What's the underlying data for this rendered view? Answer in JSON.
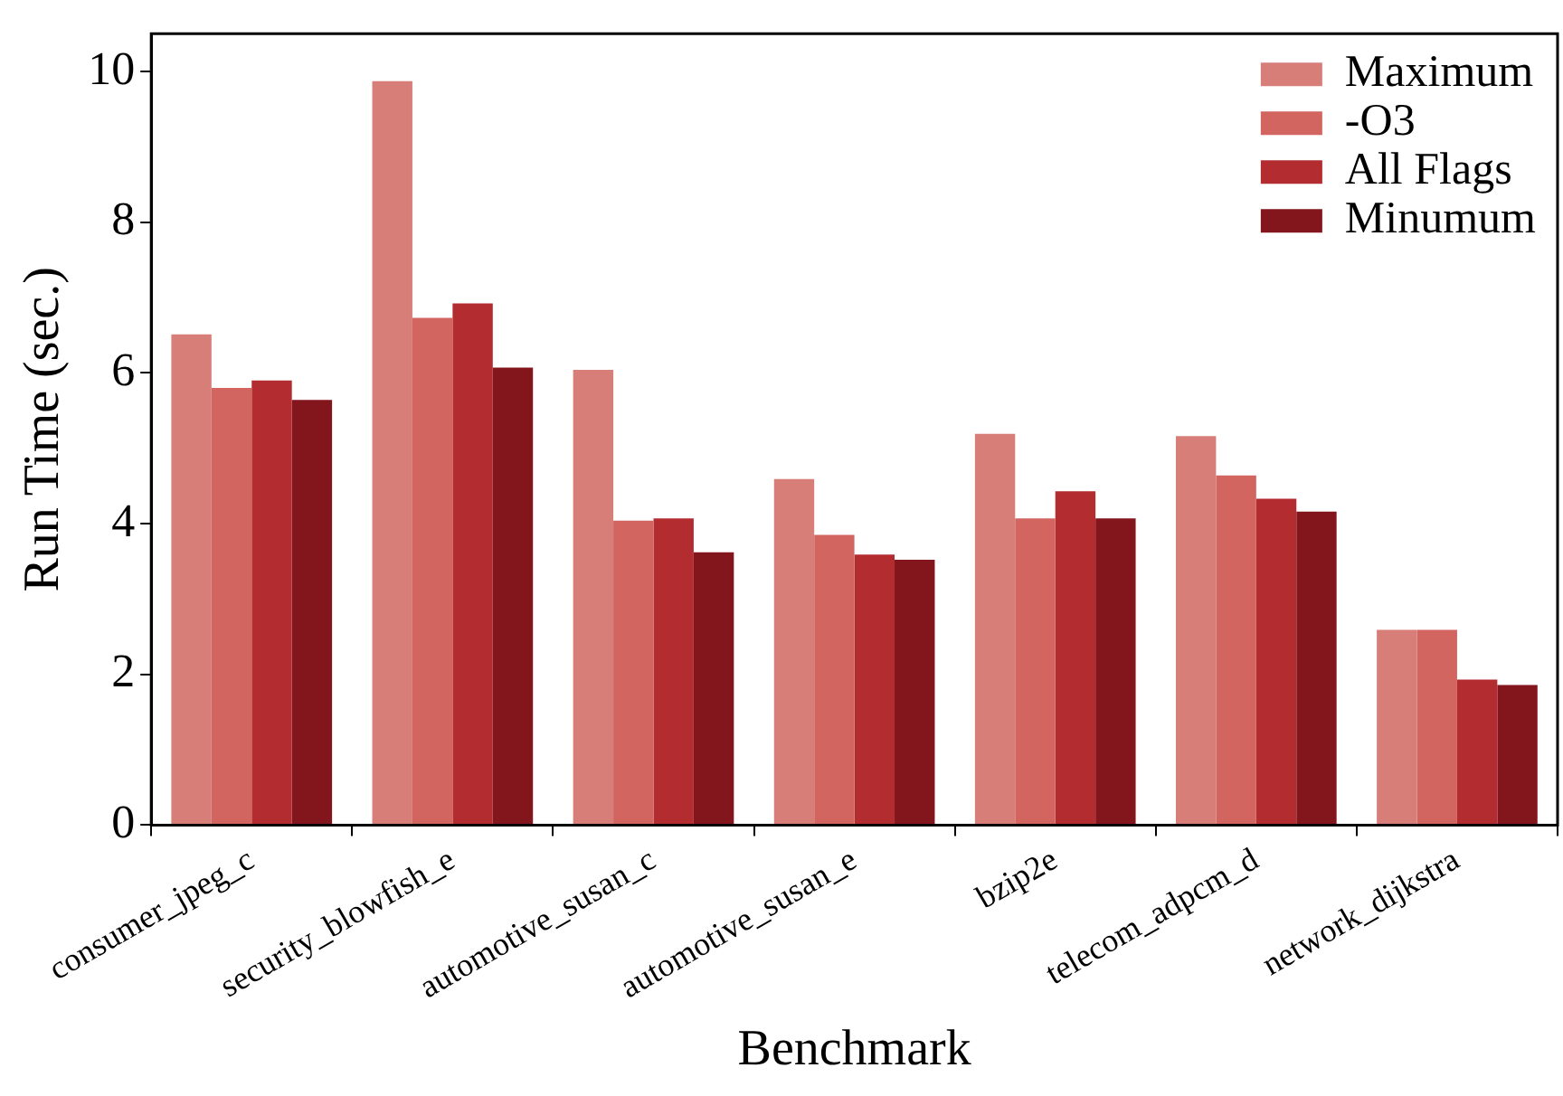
{
  "chart_data": {
    "type": "bar",
    "xlabel": "Benchmark",
    "ylabel": "Run Time (sec.)",
    "categories": [
      "consumer_jpeg_c",
      "security_blowfish_e",
      "automotive_susan_c",
      "automotive_susan_e",
      "bzip2e",
      "telecom_adpcm_d",
      "network_dijkstra"
    ],
    "series": [
      {
        "name": "Maximum",
        "color": "#d87e78",
        "values": [
          6.51,
          9.87,
          6.04,
          4.59,
          5.19,
          5.16,
          2.59
        ]
      },
      {
        "name": "-O3",
        "color": "#d26560",
        "values": [
          5.8,
          6.73,
          4.04,
          3.85,
          4.07,
          4.64,
          2.59
        ]
      },
      {
        "name": "All Flags",
        "color": "#b32c30",
        "values": [
          5.9,
          6.92,
          4.07,
          3.59,
          4.43,
          4.33,
          1.93
        ]
      },
      {
        "name": "Minumum",
        "color": "#83161c",
        "values": [
          5.64,
          6.07,
          3.62,
          3.52,
          4.07,
          4.16,
          1.86
        ]
      }
    ],
    "ylim": [
      0,
      10.5
    ],
    "yticks": [
      0,
      2,
      4,
      6,
      8,
      10
    ],
    "grid": false,
    "legend": "top right"
  }
}
